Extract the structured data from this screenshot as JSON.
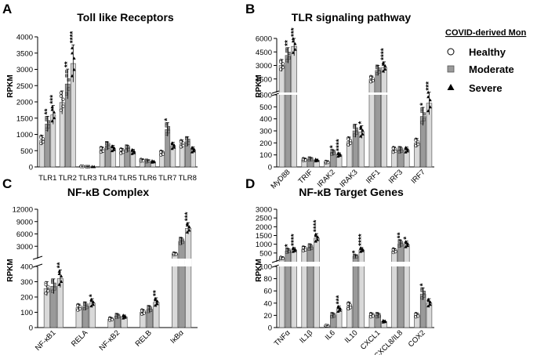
{
  "legend": {
    "title": "COVID-derived Mon",
    "items": [
      "Healthy",
      "Moderate",
      "Severe"
    ]
  },
  "chart_data": [
    {
      "panel": "A",
      "type": "bar",
      "title": "Toll like Receptors",
      "ylabel": "RPKM",
      "categories": [
        "TLR1",
        "TLR2",
        "TLR3",
        "TLR4",
        "TLR5",
        "TLR6",
        "TLR7",
        "TLR8"
      ],
      "series": [
        {
          "name": "Healthy",
          "values": [
            820,
            1980,
            15,
            520,
            480,
            200,
            420,
            700
          ]
        },
        {
          "name": "Moderate",
          "values": [
            1320,
            2550,
            8,
            650,
            560,
            180,
            1150,
            780
          ]
        },
        {
          "name": "Severe",
          "values": [
            1600,
            3180,
            5,
            560,
            460,
            160,
            640,
            520
          ]
        }
      ],
      "stars": [
        [
          "",
          "**",
          "***"
        ],
        [
          "",
          "**",
          "****"
        ],
        [
          "",
          "",
          ""
        ],
        [
          "",
          "",
          ""
        ],
        [
          "",
          "",
          ""
        ],
        [
          "",
          "",
          ""
        ],
        [
          "",
          "*",
          ""
        ],
        [
          "",
          "",
          ""
        ]
      ],
      "segments": [
        {
          "domain": [
            0,
            4000
          ],
          "ticks": [
            "0",
            "500",
            "1000",
            "1500",
            "2000",
            "2500",
            "3000",
            "3500",
            "4000"
          ]
        }
      ]
    },
    {
      "panel": "B",
      "type": "bar",
      "title": "TLR signaling pathway",
      "ylabel": "RPKM",
      "categories": [
        "MyD88",
        "TRIF",
        "IRAK2",
        "IRAK3",
        "IRF1",
        "IRF3",
        "IRF7"
      ],
      "series": [
        {
          "name": "Healthy",
          "values": [
            3300,
            60,
            40,
            210,
            1900,
            140,
            200
          ]
        },
        {
          "name": "Moderate",
          "values": [
            4300,
            65,
            120,
            300,
            2800,
            140,
            420
          ]
        },
        {
          "name": "Severe",
          "values": [
            5200,
            55,
            100,
            290,
            3100,
            140,
            530
          ]
        }
      ],
      "stars": [
        [
          "",
          "**",
          "***"
        ],
        [
          "",
          "",
          ""
        ],
        [
          "",
          "*",
          "****"
        ],
        [
          "",
          "",
          "*"
        ],
        [
          "",
          "",
          "****"
        ],
        [
          "",
          "",
          ""
        ],
        [
          "",
          "*",
          "***"
        ]
      ],
      "segments": [
        {
          "domain": [
            0,
            600
          ],
          "ticks": [
            "0",
            "100",
            "200",
            "300",
            "400",
            "500",
            "600"
          ]
        },
        {
          "domain": [
            600,
            6000
          ],
          "ticks": [
            "1500",
            "3000",
            "4500",
            "6000"
          ]
        }
      ]
    },
    {
      "panel": "C",
      "type": "bar",
      "title": "NF-κB Complex",
      "ylabel": "RPKM",
      "categories": [
        "NF-κB1",
        "RELA",
        "NF-κB2",
        "RELB",
        "IκBα"
      ],
      "series": [
        {
          "name": "Healthy",
          "values": [
            255,
            130,
            55,
            100,
            1500
          ]
        },
        {
          "name": "Moderate",
          "values": [
            270,
            140,
            75,
            120,
            4500
          ]
        },
        {
          "name": "Severe",
          "values": [
            320,
            160,
            70,
            165,
            7500
          ]
        }
      ],
      "stars": [
        [
          "",
          "",
          "**"
        ],
        [
          "",
          "",
          "*"
        ],
        [
          "",
          "",
          ""
        ],
        [
          "",
          "",
          "**"
        ],
        [
          "",
          "",
          "***"
        ]
      ],
      "segments": [
        {
          "domain": [
            0,
            400
          ],
          "ticks": [
            "0",
            "100",
            "200",
            "300",
            "400"
          ]
        },
        {
          "domain": [
            400,
            12000
          ],
          "ticks": [
            "3000",
            "6000",
            "9000",
            "12000"
          ]
        }
      ]
    },
    {
      "panel": "D",
      "type": "bar",
      "title": "NF-κB Target Genes",
      "ylabel": "RPKM",
      "categories": [
        "TNFα",
        "IL1β",
        "IL6",
        "IL10",
        "CXCL1",
        "CXCL8/IL8",
        "COX2"
      ],
      "series": [
        {
          "name": "Healthy",
          "values": [
            300,
            800,
            3,
            35,
            20,
            700,
            20
          ]
        },
        {
          "name": "Moderate",
          "values": [
            700,
            900,
            20,
            400,
            20,
            1100,
            55
          ]
        },
        {
          "name": "Severe",
          "values": [
            750,
            1400,
            30,
            750,
            10,
            1050,
            40
          ]
        }
      ],
      "stars": [
        [
          "",
          "*",
          "****"
        ],
        [
          "",
          "",
          "****"
        ],
        [
          "",
          "",
          "***"
        ],
        [
          "",
          "*",
          "****"
        ],
        [
          "",
          "",
          ""
        ],
        [
          "",
          "**",
          "*"
        ],
        [
          "",
          "*",
          ""
        ]
      ],
      "segments": [
        {
          "domain": [
            0,
            100
          ],
          "ticks": [
            "0",
            "20",
            "40",
            "60",
            "80",
            "100"
          ]
        },
        {
          "domain": [
            100,
            3000
          ],
          "ticks": [
            "500",
            "1000",
            "1500",
            "2000",
            "2500",
            "3000"
          ]
        }
      ]
    }
  ]
}
